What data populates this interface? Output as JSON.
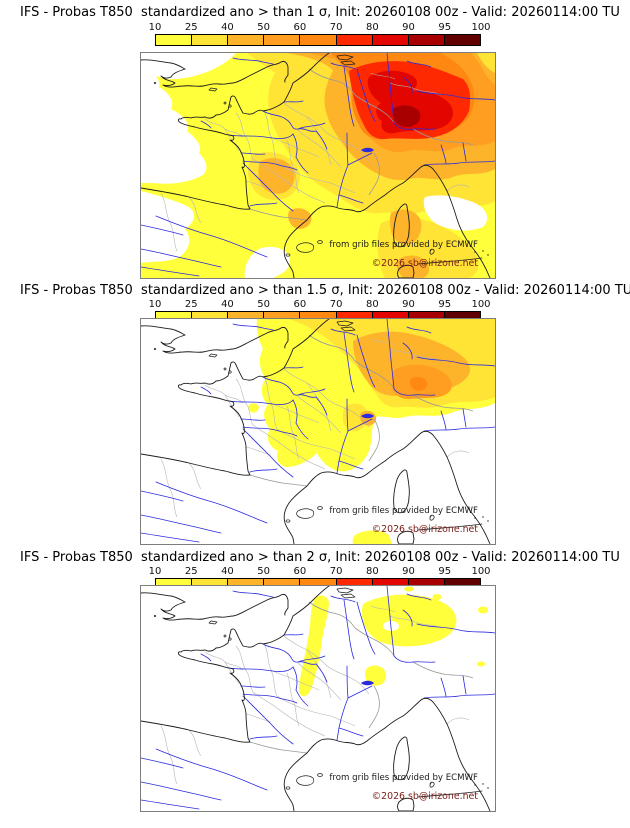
{
  "page": {
    "background": "#ffffff"
  },
  "colorbar": {
    "unit": "probability %",
    "ticks": [
      "10",
      "25",
      "40",
      "50",
      "60",
      "70",
      "80",
      "90",
      "95",
      "100"
    ],
    "colors": [
      "#FFFF3C",
      "#FFE335",
      "#FEB42A",
      "#FF9E20",
      "#FF8812",
      "#FE2900",
      "#E30500",
      "#A80000",
      "#600000"
    ]
  },
  "panels": [
    {
      "title": "IFS - Probas T850  standardized ano > than 1 σ, Init: 20260108 00z - Valid: 20260114:00 TU",
      "threshold": "1 σ"
    },
    {
      "title": "IFS - Probas T850  standardized ano > than 1.5 σ, Init: 20260108 00z - Valid: 20260114:00 TU",
      "threshold": "1.5 σ"
    },
    {
      "title": "IFS - Probas T850  standardized ano > than 2 σ, Init: 20260108 00z - Valid: 20260114:00 TU",
      "threshold": "2 σ"
    }
  ],
  "credits": {
    "line1": "from grib files provided by ECMWF",
    "line2": "©2026 sb@irizone.net",
    "line1_color": "#1a1a1a",
    "line2_color": "#7a2018"
  },
  "map_colors": {
    "coast": "#1c1c1c",
    "river": "#2a2ae0",
    "border": "#b5b5b5",
    "frame": "#7d7d7d"
  }
}
